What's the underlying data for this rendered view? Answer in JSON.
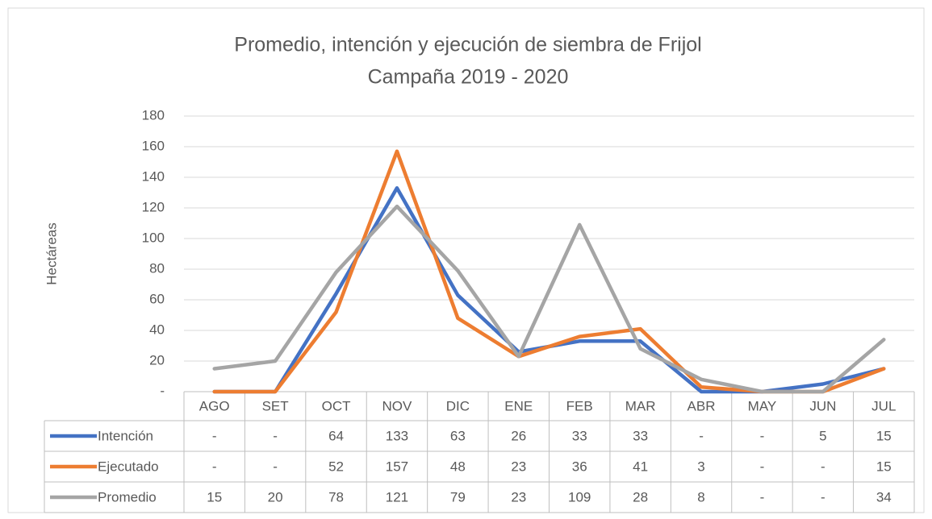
{
  "chart_data": {
    "type": "line",
    "title": "Promedio, intención y ejecución de siembra de Frijol",
    "subtitle": "Campaña 2019 - 2020",
    "y_label": "Hectáreas",
    "categories": [
      "AGO",
      "SET",
      "OCT",
      "NOV",
      "DIC",
      "ENE",
      "FEB",
      "MAR",
      "ABR",
      "MAY",
      "JUN",
      "JUL"
    ],
    "series": [
      {
        "name": "Intención",
        "color": "#4472c4",
        "values": [
          0,
          0,
          64,
          133,
          63,
          26,
          33,
          33,
          0,
          0,
          5,
          15
        ],
        "value_labels": [
          "-",
          "-",
          "64",
          "133",
          "63",
          "26",
          "33",
          "33",
          "-",
          "-",
          "5",
          "15"
        ]
      },
      {
        "name": "Ejecutado",
        "color": "#ed7d31",
        "values": [
          0,
          0,
          52,
          157,
          48,
          23,
          36,
          41,
          3,
          0,
          0,
          15
        ],
        "value_labels": [
          "-",
          "-",
          "52",
          "157",
          "48",
          "23",
          "36",
          "41",
          "3",
          "-",
          "-",
          "15"
        ]
      },
      {
        "name": "Promedio",
        "color": "#a5a5a5",
        "values": [
          15,
          20,
          78,
          121,
          79,
          23,
          109,
          28,
          8,
          0,
          0,
          34
        ],
        "value_labels": [
          "15",
          "20",
          "78",
          "121",
          "79",
          "23",
          "109",
          "28",
          "8",
          "-",
          "-",
          "34"
        ]
      }
    ],
    "ylim": [
      0,
      180
    ],
    "yticks": [
      {
        "value": 0,
        "label": "-"
      },
      20,
      40,
      60,
      80,
      100,
      120,
      140,
      160,
      180
    ],
    "grid": true
  }
}
